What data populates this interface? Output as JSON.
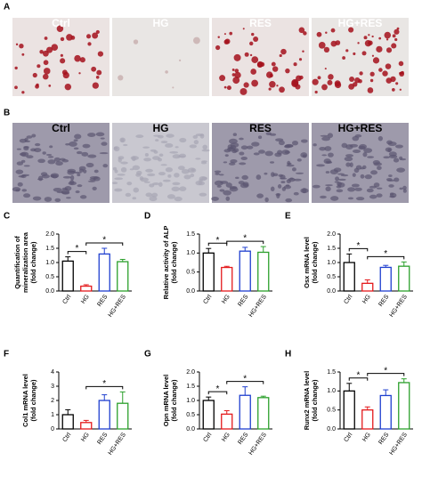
{
  "panel_a": {
    "label": "A",
    "conditions": [
      "Ctrl",
      "HG",
      "RES",
      "HG+RES"
    ]
  },
  "panel_b": {
    "label": "B",
    "conditions": [
      "Ctrl",
      "HG",
      "RES",
      "HG+RES"
    ]
  },
  "chart_data": [
    {
      "type": "bar",
      "panel": "C",
      "ylabel": [
        "Quantification of",
        "mineralization area",
        "(fold change)"
      ],
      "categories": [
        "Ctrl",
        "HG",
        "RES",
        "HG+RES"
      ],
      "values": [
        1.05,
        0.17,
        1.3,
        1.03
      ],
      "errors": [
        0.15,
        0.05,
        0.2,
        0.08
      ],
      "colors": [
        "#000000",
        "#e41a1c",
        "#1f3fcf",
        "#2ca02c"
      ],
      "ylim": [
        0,
        2
      ],
      "yticks": [
        {
          "value": 0,
          "label": "0.0"
        },
        0.5,
        {
          "value": 1,
          "label": "1.0"
        },
        1.5,
        {
          "value": 2,
          "label": "2.0"
        }
      ],
      "annotations": [
        {
          "text": "*",
          "from": "Ctrl",
          "to": "HG"
        },
        {
          "text": "*",
          "from": "HG",
          "to": "HG+RES"
        }
      ]
    },
    {
      "type": "bar",
      "panel": "D",
      "ylabel": [
        "Relative activity of ALP",
        "(fold change)"
      ],
      "categories": [
        "Ctrl",
        "HG",
        "RES",
        "HG+RES"
      ],
      "values": [
        1.0,
        0.62,
        1.05,
        1.02
      ],
      "errors": [
        0.12,
        0.03,
        0.1,
        0.15
      ],
      "colors": [
        "#000000",
        "#e41a1c",
        "#1f3fcf",
        "#2ca02c"
      ],
      "ylim": [
        0,
        1.5
      ],
      "yticks": [
        {
          "value": 0,
          "label": "0.0"
        },
        0.5,
        {
          "value": 1,
          "label": "1.0"
        },
        1.5
      ],
      "annotations": [
        {
          "text": "*",
          "from": "Ctrl",
          "to": "HG"
        },
        {
          "text": "*",
          "from": "HG",
          "to": "HG+RES"
        }
      ]
    },
    {
      "type": "bar",
      "panel": "E",
      "ylabel": [
        "Osx mRNA level",
        "(fold change)"
      ],
      "categories": [
        "Ctrl",
        "HG",
        "RES",
        "HG+RES"
      ],
      "values": [
        1.0,
        0.27,
        0.83,
        0.87
      ],
      "errors": [
        0.3,
        0.12,
        0.07,
        0.15
      ],
      "colors": [
        "#000000",
        "#e41a1c",
        "#1f3fcf",
        "#2ca02c"
      ],
      "ylim": [
        0,
        2
      ],
      "yticks": [
        {
          "value": 0,
          "label": "0.0"
        },
        0.5,
        {
          "value": 1,
          "label": "1.0"
        },
        1.5,
        {
          "value": 2,
          "label": "2.0"
        }
      ],
      "annotations": [
        {
          "text": "*",
          "from": "Ctrl",
          "to": "HG"
        },
        {
          "text": "*",
          "from": "HG",
          "to": "HG+RES"
        }
      ]
    },
    {
      "type": "bar",
      "panel": "F",
      "ylabel": [
        "Col1 mRNA level",
        "(fold change)"
      ],
      "categories": [
        "Ctrl",
        "HG",
        "RES",
        "HG+RES"
      ],
      "values": [
        1.0,
        0.45,
        2.0,
        1.8
      ],
      "errors": [
        0.35,
        0.15,
        0.4,
        0.8
      ],
      "colors": [
        "#000000",
        "#e41a1c",
        "#1f3fcf",
        "#2ca02c"
      ],
      "ylim": [
        0,
        4
      ],
      "yticks": [
        0,
        1,
        2,
        3,
        4
      ],
      "annotations": [
        {
          "text": "*",
          "from": "HG",
          "to": "HG+RES"
        }
      ]
    },
    {
      "type": "bar",
      "panel": "G",
      "ylabel": [
        "Opn mRNA level",
        "(fold change)"
      ],
      "categories": [
        "Ctrl",
        "HG",
        "RES",
        "HG+RES"
      ],
      "values": [
        1.0,
        0.52,
        1.18,
        1.1
      ],
      "errors": [
        0.12,
        0.12,
        0.3,
        0.05
      ],
      "colors": [
        "#000000",
        "#e41a1c",
        "#1f3fcf",
        "#2ca02c"
      ],
      "ylim": [
        0,
        2
      ],
      "yticks": [
        {
          "value": 0,
          "label": "0.0"
        },
        0.5,
        {
          "value": 1,
          "label": "1.0"
        },
        1.5,
        {
          "value": 2,
          "label": "2.0"
        }
      ],
      "annotations": [
        {
          "text": "*",
          "from": "Ctrl",
          "to": "HG"
        },
        {
          "text": "*",
          "from": "HG",
          "to": "HG+RES"
        }
      ]
    },
    {
      "type": "bar",
      "panel": "H",
      "ylabel": [
        "Runx2 mRNA level",
        "(fold change)"
      ],
      "categories": [
        "Ctrl",
        "HG",
        "RES",
        "HG+RES"
      ],
      "values": [
        1.0,
        0.5,
        0.88,
        1.22
      ],
      "errors": [
        0.2,
        0.08,
        0.15,
        0.1
      ],
      "colors": [
        "#000000",
        "#e41a1c",
        "#1f3fcf",
        "#2ca02c"
      ],
      "ylim": [
        0,
        1.5
      ],
      "yticks": [
        {
          "value": 0,
          "label": "0.0"
        },
        0.5,
        {
          "value": 1,
          "label": "1.0"
        },
        1.5
      ],
      "annotations": [
        {
          "text": "*",
          "from": "Ctrl",
          "to": "HG"
        },
        {
          "text": "*",
          "from": "HG",
          "to": "HG+RES"
        }
      ]
    }
  ]
}
